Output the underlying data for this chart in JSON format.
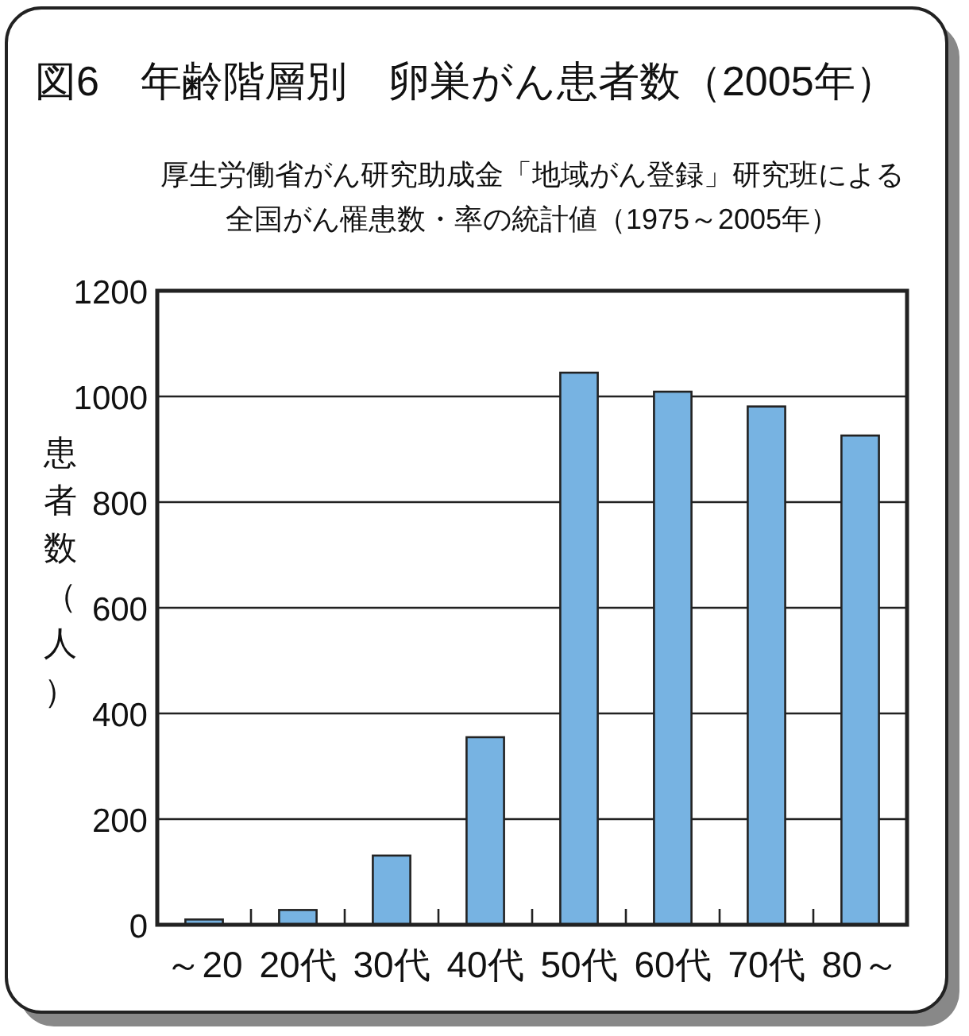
{
  "chart_data": {
    "type": "bar",
    "title": "図6　年齢階層別　卵巣がん患者数（2005年）",
    "subtitle": "厚生労働省がん研究助成金「地域がん登録」研究班による全国がん罹患数・率の統計値（1975～2005年）",
    "ylabel": "患者数（人）",
    "categories": [
      "～20",
      "20代",
      "30代",
      "40代",
      "50代",
      "60代",
      "70代",
      "80～"
    ],
    "values": [
      10,
      28,
      131,
      355,
      1045,
      1009,
      981,
      926
    ],
    "color": "#77b3e2",
    "ylim": [
      0,
      1200
    ],
    "yticks": [
      0,
      200,
      400,
      600,
      800,
      1000,
      1200
    ],
    "grid": "y"
  }
}
